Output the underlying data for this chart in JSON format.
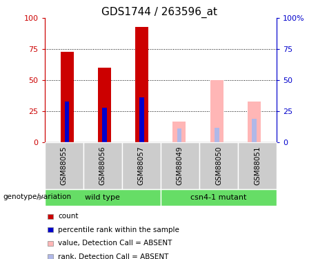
{
  "title": "GDS1744 / 263596_at",
  "categories": [
    "GSM88055",
    "GSM88056",
    "GSM88057",
    "GSM88049",
    "GSM88050",
    "GSM88051"
  ],
  "count_values": [
    73,
    60,
    93,
    0,
    0,
    0
  ],
  "rank_values": [
    33,
    28,
    36,
    0,
    0,
    0
  ],
  "absent_value_values": [
    0,
    0,
    0,
    17,
    50,
    33
  ],
  "absent_rank_values": [
    0,
    0,
    0,
    11,
    12,
    19
  ],
  "ylim": [
    0,
    100
  ],
  "yticks": [
    0,
    25,
    50,
    75,
    100
  ],
  "yticklabels_left": [
    "0",
    "25",
    "50",
    "75",
    "100"
  ],
  "yticklabels_right": [
    "0",
    "25",
    "50",
    "75",
    "100%"
  ],
  "color_count": "#cc0000",
  "color_rank": "#0000cc",
  "color_absent_value": "#ffb6b6",
  "color_absent_rank": "#b0b8e8",
  "color_group": "#66dd66",
  "color_gray": "#cccccc",
  "legend_items": [
    "count",
    "percentile rank within the sample",
    "value, Detection Call = ABSENT",
    "rank, Detection Call = ABSENT"
  ],
  "legend_colors": [
    "#cc0000",
    "#0000cc",
    "#ffb6b6",
    "#b0b8e8"
  ],
  "genotype_label": "genotype/variation",
  "group_labels": [
    [
      "wild type",
      0,
      3
    ],
    [
      "csn4-1 mutant",
      3,
      6
    ]
  ]
}
